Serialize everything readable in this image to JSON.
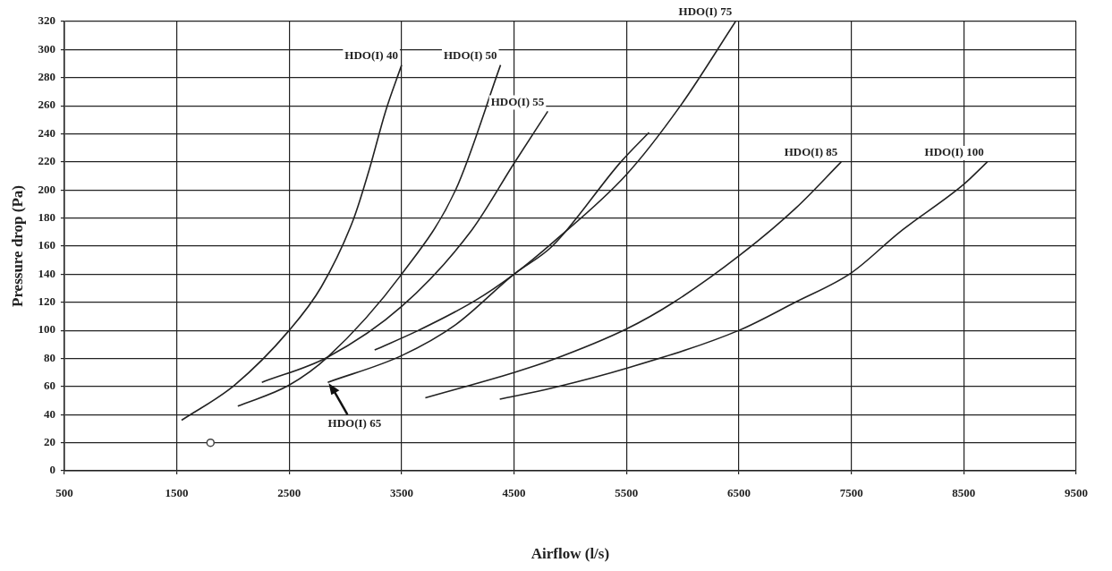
{
  "chart_data": {
    "type": "line",
    "xlabel": "Airflow (l/s)",
    "ylabel": "Pressure drop (Pa)",
    "xlim": [
      500,
      9500
    ],
    "xticks": [
      500,
      1500,
      2500,
      3500,
      4500,
      5500,
      6500,
      7500,
      8500,
      9500
    ],
    "ylim": [
      0,
      320
    ],
    "yticks": [
      0,
      20,
      40,
      60,
      80,
      100,
      120,
      140,
      160,
      180,
      200,
      220,
      240,
      260,
      280,
      300,
      320
    ],
    "grid": true,
    "legend": false,
    "marker": "none",
    "line_style": "solid",
    "series": [
      {
        "name": "HDO(I) 40",
        "color": "#222222",
        "x": [
          1543,
          2014,
          2500,
          2786,
          3071,
          3214,
          3357,
          3500
        ],
        "values": [
          36,
          61,
          100,
          131,
          179,
          215,
          256,
          289
        ]
      },
      {
        "name": "HDO(I) 50",
        "color": "#222222",
        "x": [
          2043,
          2500,
          2843,
          3500,
          3980,
          4380
        ],
        "values": [
          46,
          61,
          81,
          140,
          200,
          289
        ]
      },
      {
        "name": "HDO(I) 55",
        "color": "#222222",
        "x": [
          2257,
          2843,
          3500,
          4120,
          4500,
          4800
        ],
        "values": [
          63,
          81,
          117,
          171,
          219,
          256
        ]
      },
      {
        "color": "#222222",
        "x": [
          2843,
          3500,
          3980,
          4500,
          4840,
          5450,
          5700
        ],
        "values": [
          63,
          82,
          104,
          140,
          160,
          220,
          241
        ]
      },
      {
        "name": "HDO(I) 75",
        "color": "#222222",
        "x": [
          3260,
          3650,
          4150,
          4500,
          4850,
          5500,
          5980,
          6470
        ],
        "values": [
          86,
          100,
          121,
          140,
          163,
          211,
          260,
          320
        ]
      },
      {
        "name": "HDO(I) 85",
        "color": "#222222",
        "x": [
          3711,
          4500,
          4840,
          5500,
          5920,
          6500,
          7005,
          7410
        ],
        "values": [
          52,
          70,
          79,
          101,
          120,
          153,
          187,
          220
        ]
      },
      {
        "name": "HDO(I) 100",
        "color": "#222222",
        "x": [
          4373,
          4840,
          5500,
          6500,
          7000,
          7500,
          7930,
          8500,
          8710
        ],
        "values": [
          51,
          59,
          73,
          100,
          120,
          141,
          170,
          204,
          220
        ]
      },
      {
        "type": "scatter",
        "color": "#444444",
        "marker": "circle",
        "x": [
          1800
        ],
        "values": [
          20
        ]
      }
    ],
    "annotations": [
      {
        "text": "HDO(I) 65",
        "x": 2843,
        "y": 63
      }
    ]
  }
}
